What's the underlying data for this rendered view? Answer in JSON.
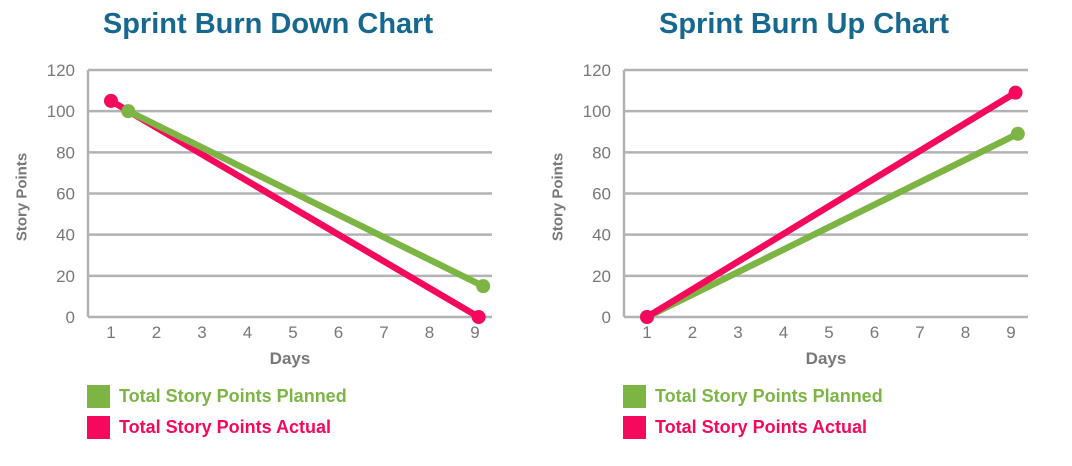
{
  "colors": {
    "background": "#ffffff",
    "title": "#17688f",
    "grid": "#b2b2b5",
    "axis_text": "#77787b",
    "planned": "#7cb544",
    "actual": "#f4095c"
  },
  "chart_data": [
    {
      "type": "line",
      "title": "Sprint Burn Down Chart",
      "xlabel": "Days",
      "ylabel": "Story Points",
      "x_ticks": [
        1,
        2,
        3,
        4,
        5,
        6,
        7,
        8,
        9
      ],
      "y_ticks": [
        0,
        20,
        40,
        60,
        80,
        100,
        120
      ],
      "xlim": [
        0.5,
        9.4
      ],
      "ylim": [
        0,
        120
      ],
      "grid": "horizontal-only",
      "legend_position": "bottom-left",
      "draw_order": [
        1,
        0
      ],
      "series": [
        {
          "name": "Total Story Points Planned",
          "color": "#7cb544",
          "x": [
            1,
            9
          ],
          "y": [
            100,
            15
          ],
          "x_draw": [
            1.38,
            9.18
          ]
        },
        {
          "name": "Total Story Points Actual",
          "color": "#f4095c",
          "x": [
            1,
            9
          ],
          "y": [
            105,
            0
          ],
          "x_draw": [
            1.0,
            9.08
          ]
        }
      ]
    },
    {
      "type": "line",
      "title": "Sprint Burn Up Chart",
      "xlabel": "Days",
      "ylabel": "Story Points",
      "x_ticks": [
        1,
        2,
        3,
        4,
        5,
        6,
        7,
        8,
        9
      ],
      "y_ticks": [
        0,
        20,
        40,
        60,
        80,
        100,
        120
      ],
      "xlim": [
        0.5,
        9.4
      ],
      "ylim": [
        0,
        120
      ],
      "grid": "horizontal-only",
      "legend_position": "bottom-left",
      "draw_order": [
        0,
        1
      ],
      "series": [
        {
          "name": "Total Story Points Planned",
          "color": "#7cb544",
          "x": [
            1,
            9
          ],
          "y": [
            0,
            89
          ],
          "x_draw": [
            1.0,
            9.15
          ]
        },
        {
          "name": "Total Story Points Actual",
          "color": "#f4095c",
          "x": [
            1,
            9
          ],
          "y": [
            0,
            109
          ],
          "x_draw": [
            1.0,
            9.1
          ]
        }
      ]
    }
  ]
}
